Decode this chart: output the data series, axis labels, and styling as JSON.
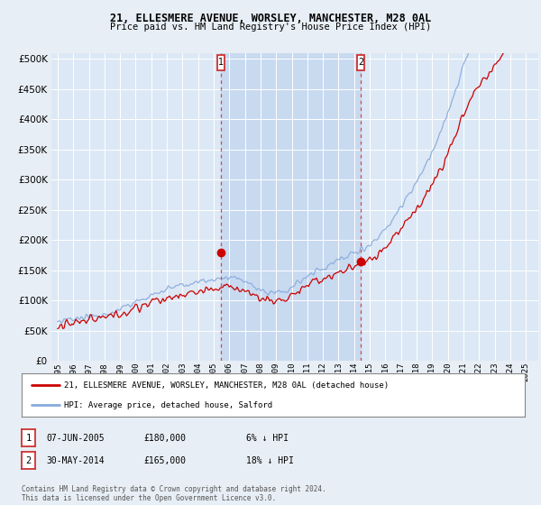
{
  "title1": "21, ELLESMERE AVENUE, WORSLEY, MANCHESTER, M28 0AL",
  "title2": "Price paid vs. HM Land Registry's House Price Index (HPI)",
  "background_color": "#e8eef5",
  "plot_bg_color": "#dce8f5",
  "shade_color": "#c8daf0",
  "yticks": [
    0,
    50000,
    100000,
    150000,
    200000,
    250000,
    300000,
    350000,
    400000,
    450000,
    500000
  ],
  "ylim": [
    0,
    510000
  ],
  "marker1_x": 2005.44,
  "marker1_value": 180000,
  "marker2_x": 2014.42,
  "marker2_value": 165000,
  "legend_line1": "21, ELLESMERE AVENUE, WORSLEY, MANCHESTER, M28 0AL (detached house)",
  "legend_line2": "HPI: Average price, detached house, Salford",
  "line1_color": "#cc0000",
  "line2_color": "#88aadd",
  "footer": "Contains HM Land Registry data © Crown copyright and database right 2024.\nThis data is licensed under the Open Government Licence v3.0."
}
